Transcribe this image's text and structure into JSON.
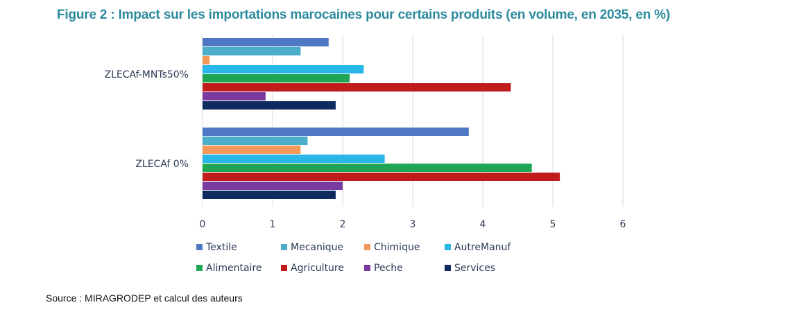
{
  "figure": {
    "title": "Figure 2 : Impact sur les importations marocaines pour certains produits (en volume, en 2035, en %)",
    "source": "Source : MIRAGRODEP et calcul des auteurs"
  },
  "chart_data": {
    "type": "bar",
    "orientation": "horizontal",
    "title": "Figure 2 : Impact sur les importations marocaines pour certains produits (en volume, en 2035, en %)",
    "categories": [
      "ZLECAf-MNTs50%",
      "ZLECAf 0%"
    ],
    "xlim": [
      0,
      6
    ],
    "xticks": [
      0,
      1,
      2,
      3,
      4,
      5,
      6
    ],
    "grid": true,
    "legend_position": "bottom",
    "series": [
      {
        "name": "Textile",
        "color": "#4f78c4",
        "values": [
          1.8,
          3.8
        ]
      },
      {
        "name": "Mecanique",
        "color": "#4baec9",
        "values": [
          1.4,
          1.5
        ]
      },
      {
        "name": "Chimique",
        "color": "#f39a5a",
        "values": [
          0.1,
          1.4
        ]
      },
      {
        "name": "AutreManuf",
        "color": "#29b6e8",
        "values": [
          2.3,
          2.6
        ]
      },
      {
        "name": "Alimentaire",
        "color": "#1fa654",
        "values": [
          2.1,
          4.7
        ]
      },
      {
        "name": "Agriculture",
        "color": "#c01c1c",
        "values": [
          4.4,
          5.1
        ]
      },
      {
        "name": "Peche",
        "color": "#7a3ba0",
        "values": [
          0.9,
          2.0
        ]
      },
      {
        "name": "Services",
        "color": "#0f2a5e",
        "values": [
          1.9,
          1.9
        ]
      }
    ]
  }
}
